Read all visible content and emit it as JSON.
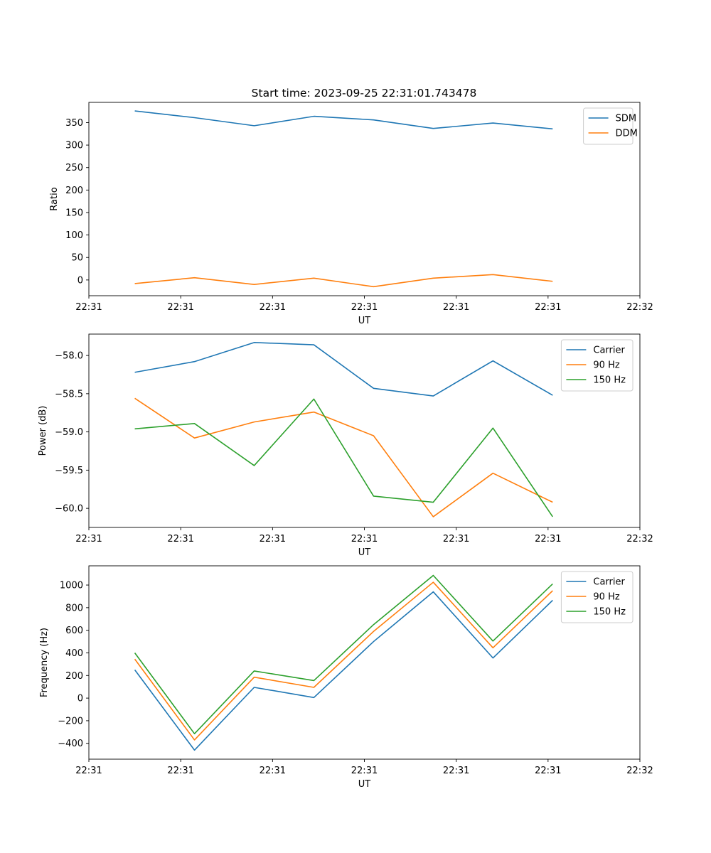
{
  "figure_title": "Start time: 2023-09-25 22:31:01.743478",
  "chart_data": [
    {
      "type": "line",
      "title": "Start time: 2023-09-25 22:31:01.743478",
      "xlabel": "UT",
      "ylabel": "Ratio",
      "x": [
        0.5,
        1.15,
        1.8,
        2.45,
        3.1,
        3.75,
        4.4,
        5.05
      ],
      "xlim": [
        0,
        6
      ],
      "xticks": [
        0,
        1,
        2,
        3,
        4,
        5,
        6
      ],
      "xtick_labels": [
        "22:31",
        "22:31",
        "22:31",
        "22:31",
        "22:31",
        "22:31",
        "22:32"
      ],
      "ylim": [
        -35,
        395
      ],
      "yticks": [
        0,
        50,
        100,
        150,
        200,
        250,
        300,
        350
      ],
      "ytick_labels": [
        "0",
        "50",
        "100",
        "150",
        "200",
        "250",
        "300",
        "350"
      ],
      "legend": "top-right",
      "series": [
        {
          "name": "SDM",
          "color": "#1f77b4",
          "values": [
            376,
            361,
            343,
            364,
            356,
            337,
            349,
            336
          ]
        },
        {
          "name": "DDM",
          "color": "#ff7f0e",
          "values": [
            -8,
            5,
            -10,
            4,
            -15,
            4,
            12,
            -3
          ]
        }
      ]
    },
    {
      "type": "line",
      "title": "",
      "xlabel": "UT",
      "ylabel": "Power (dB)",
      "x": [
        0.5,
        1.15,
        1.8,
        2.45,
        3.1,
        3.75,
        4.4,
        5.05
      ],
      "xlim": [
        0,
        6
      ],
      "xticks": [
        0,
        1,
        2,
        3,
        4,
        5,
        6
      ],
      "xtick_labels": [
        "22:31",
        "22:31",
        "22:31",
        "22:31",
        "22:31",
        "22:31",
        "22:32"
      ],
      "ylim": [
        -60.25,
        -57.72
      ],
      "yticks": [
        -60.0,
        -59.5,
        -59.0,
        -58.5,
        -58.0
      ],
      "ytick_labels": [
        "−60.0",
        "−59.5",
        "−59.0",
        "−58.5",
        "−58.0"
      ],
      "legend": "top-right",
      "series": [
        {
          "name": "Carrier",
          "color": "#1f77b4",
          "values": [
            -58.22,
            -58.08,
            -57.83,
            -57.86,
            -58.43,
            -58.53,
            -58.07,
            -58.52
          ]
        },
        {
          "name": "90 Hz",
          "color": "#ff7f0e",
          "values": [
            -58.56,
            -59.08,
            -58.87,
            -58.74,
            -59.05,
            -60.11,
            -59.54,
            -59.92
          ]
        },
        {
          "name": "150 Hz",
          "color": "#2ca02c",
          "values": [
            -58.96,
            -58.89,
            -59.44,
            -58.57,
            -59.84,
            -59.92,
            -58.95,
            -60.11
          ]
        }
      ]
    },
    {
      "type": "line",
      "title": "",
      "xlabel": "UT",
      "ylabel": "Frequency (Hz)",
      "x": [
        0.5,
        1.15,
        1.8,
        2.45,
        3.1,
        3.75,
        4.4,
        5.05
      ],
      "xlim": [
        0,
        6
      ],
      "xticks": [
        0,
        1,
        2,
        3,
        4,
        5,
        6
      ],
      "xtick_labels": [
        "22:31",
        "22:31",
        "22:31",
        "22:31",
        "22:31",
        "22:31",
        "22:32"
      ],
      "ylim": [
        -540,
        1170
      ],
      "yticks": [
        -400,
        -200,
        0,
        200,
        400,
        600,
        800,
        1000
      ],
      "ytick_labels": [
        "−400",
        "−200",
        "0",
        "200",
        "400",
        "600",
        "800",
        "1000"
      ],
      "legend": "top-right",
      "series": [
        {
          "name": "Carrier",
          "color": "#1f77b4",
          "values": [
            250,
            -460,
            95,
            5,
            500,
            940,
            355,
            865
          ]
        },
        {
          "name": "90 Hz",
          "color": "#ff7f0e",
          "values": [
            345,
            -370,
            185,
            95,
            590,
            1025,
            445,
            950
          ]
        },
        {
          "name": "150 Hz",
          "color": "#2ca02c",
          "values": [
            400,
            -315,
            240,
            155,
            650,
            1085,
            505,
            1010
          ]
        }
      ]
    }
  ]
}
